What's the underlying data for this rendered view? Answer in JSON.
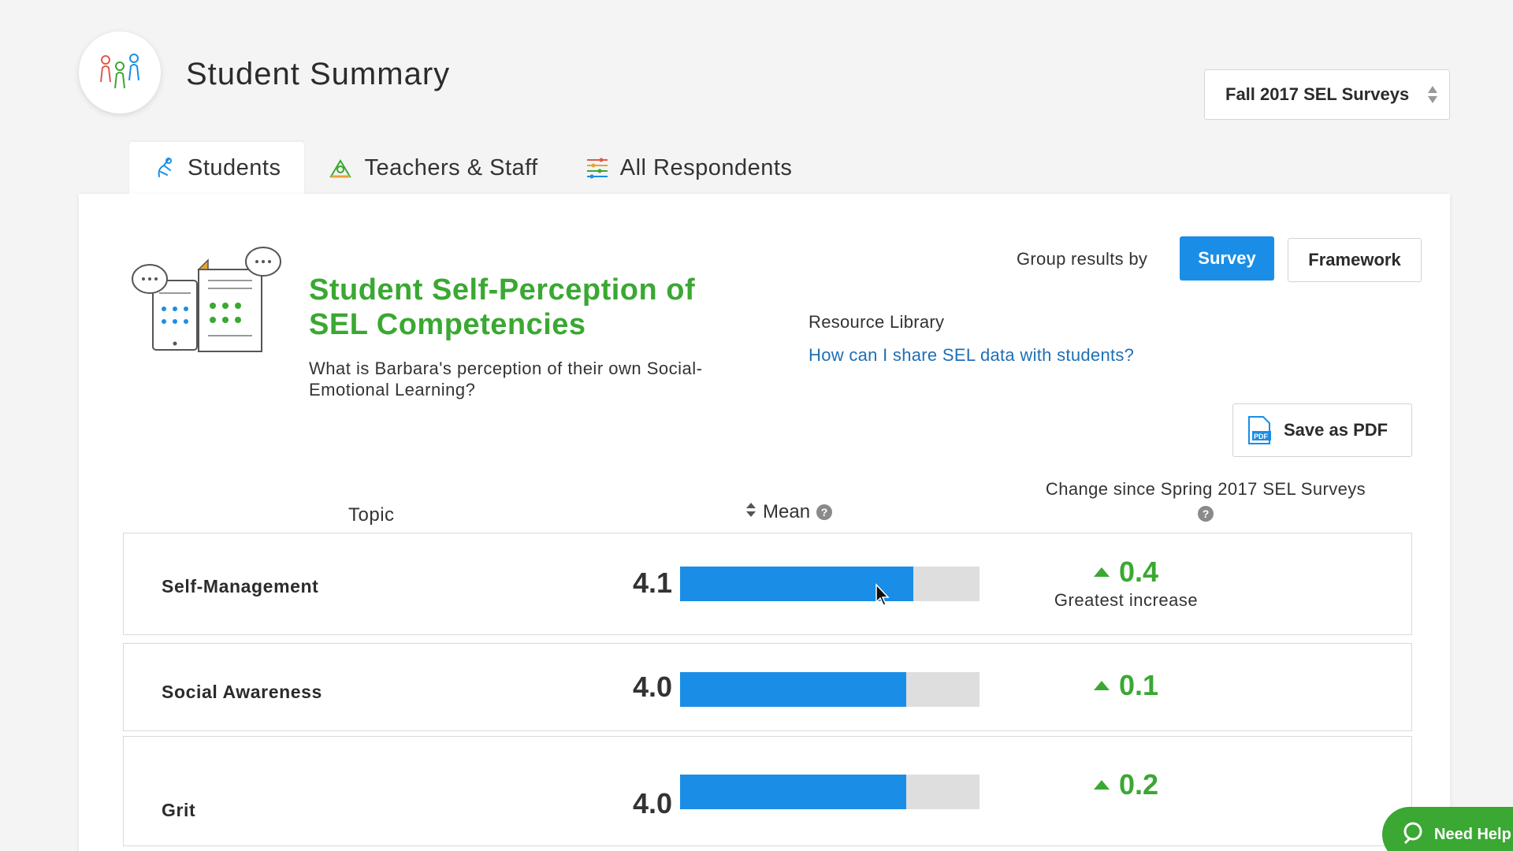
{
  "header": {
    "title": "Student Summary",
    "survey_select": "Fall 2017 SEL Surveys"
  },
  "tabs": [
    {
      "label": "Students",
      "active": true
    },
    {
      "label": "Teachers & Staff",
      "active": false
    },
    {
      "label": "All Respondents",
      "active": false
    }
  ],
  "section": {
    "title": "Student Self-Perception of SEL Competencies",
    "question": "What is Barbara's perception of their own Social-Emotional Learning?"
  },
  "grouping": {
    "label": "Group results by",
    "options": [
      "Survey",
      "Framework"
    ],
    "selected": "Survey"
  },
  "resources": {
    "label": "Resource Library",
    "link": "How can I share SEL data with students?"
  },
  "save_pdf": "Save as PDF",
  "table": {
    "topic_header": "Topic",
    "mean_header": "Mean",
    "change_header": "Change since Spring 2017 SEL Surveys",
    "rows": [
      {
        "topic": "Self-Management",
        "mean": "4.1",
        "mean_fraction": 0.78,
        "change": "0.4",
        "note": "Greatest increase"
      },
      {
        "topic": "Social Awareness",
        "mean": "4.0",
        "mean_fraction": 0.755,
        "change": "0.1"
      },
      {
        "topic": "Grit",
        "mean": "4.0",
        "mean_fraction": 0.755,
        "change": "0.2"
      }
    ]
  },
  "help_widget": "Need Help",
  "colors": {
    "accent_blue": "#1a8ee6",
    "accent_green": "#3aa832",
    "link_blue": "#1f6fb5"
  }
}
